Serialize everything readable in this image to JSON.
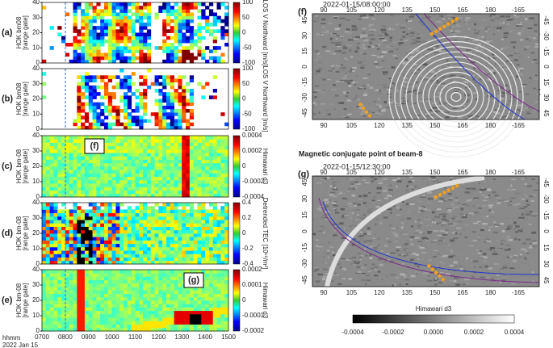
{
  "panels": [
    {
      "label": "(a)",
      "ylabel": [
        "HOK bm08",
        "[range gate]"
      ],
      "yticks": [
        "0",
        "10",
        "20",
        "30",
        "40"
      ],
      "cbar_label": "LOS V Northward [m/s]",
      "cbar_ticks": [
        "100",
        "50",
        "0",
        "-50",
        "-100"
      ]
    },
    {
      "label": "(b)",
      "ylabel": [
        "HOK bm08",
        "[range gate]"
      ],
      "yticks": [
        "0",
        "10",
        "20",
        "30",
        "40"
      ],
      "cbar_label": "LOS V Northward [m/s]",
      "cbar_ticks": [
        "100",
        "50",
        "0",
        "-50",
        "-100"
      ]
    },
    {
      "label": "(c)",
      "ylabel": [
        "HOK bm-08",
        "[range gate]"
      ],
      "yticks": [
        "0",
        "10",
        "20",
        "30",
        "40"
      ],
      "cbar_label": "Himawari d3",
      "cbar_ticks": [
        "0.0004",
        "0.0002",
        "0",
        "-0.0002",
        "-0.0004"
      ],
      "inset": "(f)"
    },
    {
      "label": "(d)",
      "ylabel": [
        "HOK bm-08",
        "[range gate]"
      ],
      "yticks": [
        "0",
        "10",
        "20",
        "30",
        "40"
      ],
      "cbar_label": "Detrended TEC [10¹⁶/m²]",
      "cbar_ticks": [
        "0.4",
        "0.2",
        "0",
        "-0.2",
        "-0.4"
      ]
    },
    {
      "label": "(e)",
      "ylabel": [
        "HOK bm-08",
        "[range gate]"
      ],
      "yticks": [
        "0",
        "10",
        "20",
        "30",
        "40"
      ],
      "cbar_label": "Himawari d3",
      "cbar_ticks": [
        "0.0002",
        "0.0001",
        "0",
        "-0.0001",
        "-0.0002"
      ],
      "inset": "(g)"
    }
  ],
  "time_axis": {
    "ticks": [
      "0700",
      "0800",
      "0900",
      "1000",
      "1100",
      "1200",
      "1300",
      "1400",
      "1500"
    ],
    "label": [
      "hhmm",
      "2022 Jan 15"
    ]
  },
  "maps": [
    {
      "label": "(f)",
      "title": "2022-01-15/08:00:00",
      "lon_ticks": [
        "90",
        "105",
        "120",
        "135",
        "150",
        "165",
        "180",
        "-165"
      ],
      "lat_ticks": [
        "-45",
        "-30",
        "-15",
        "0",
        "15",
        "30",
        "45"
      ]
    },
    {
      "label": "(g)",
      "title": "2022-01-15/12:30:00",
      "lon_ticks": [
        "90",
        "105",
        "120",
        "135",
        "150",
        "165",
        "180",
        "-165"
      ],
      "lat_ticks": [
        "-45",
        "-30",
        "-15",
        "0",
        "15",
        "30",
        "45"
      ]
    }
  ],
  "map_caption": "Magnetic conjugate point of beam-8",
  "map_cbar": {
    "label": "Himawari d3",
    "ticks": [
      "-0.0004",
      "-0.0002",
      "0.0000",
      "0.0002",
      "0.0004"
    ]
  }
}
